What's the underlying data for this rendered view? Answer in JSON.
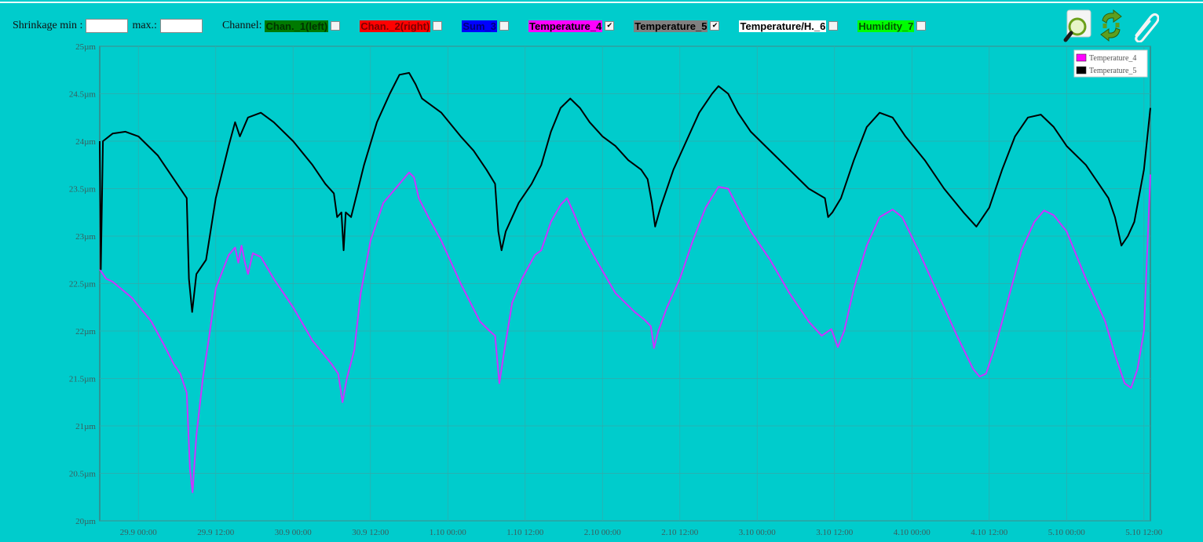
{
  "toolbar": {
    "shrinkage_min_label": "Shrinkage min :",
    "shrinkage_min_value": "",
    "max_label": "max.:",
    "max_value": "",
    "channel_label": "Channel:",
    "channels": [
      {
        "label": "Chan._1(left)",
        "bg": "#007a00",
        "fg": "#003300",
        "checked": false
      },
      {
        "label": "Chan._2(right)",
        "bg": "#ff0000",
        "fg": "#7a0000",
        "checked": false
      },
      {
        "label": "Sum_3",
        "bg": "#0000ff",
        "fg": "#00007a",
        "checked": false
      },
      {
        "label": "Temperature_4",
        "bg": "#ff00ff",
        "fg": "#000000",
        "checked": true
      },
      {
        "label": "Temperature_5",
        "bg": "#808080",
        "fg": "#000000",
        "checked": true
      },
      {
        "label": "Temperature/H._6",
        "bg": "#ffffff",
        "fg": "#000000",
        "checked": false
      },
      {
        "label": "Humidity_7",
        "bg": "#00ff00",
        "fg": "#005500",
        "checked": false
      }
    ]
  },
  "icons": [
    "zoom-icon",
    "refresh-icon",
    "attach-icon"
  ],
  "chart_data": {
    "type": "line",
    "ylim": [
      20,
      25
    ],
    "y_unit": "µm",
    "y_ticks": [
      "20µm",
      "20.5µm",
      "21µm",
      "21.5µm",
      "22µm",
      "22.5µm",
      "23µm",
      "23.5µm",
      "24µm",
      "24.5µm",
      "25µm"
    ],
    "x_ticks": [
      "29.9 00:00",
      "29.9 12:00",
      "30.9 00:00",
      "30.9 12:00",
      "1.10 00:00",
      "1.10 12:00",
      "2.10 00:00",
      "2.10 12:00",
      "3.10 00:00",
      "3.10 12:00",
      "4.10 00:00",
      "4.10 12:00",
      "5.10 00:00",
      "5.10 12:00"
    ],
    "xlim": [
      "28.9 18:00",
      "5.10 13:00"
    ],
    "grid": true,
    "legend": "top-right",
    "background": "#00cccc",
    "series": [
      {
        "name": "Temperature_4",
        "color": "#cc33ff",
        "legend_color": "#ff00ff",
        "points": [
          [
            "28.9 18:00",
            22.65
          ],
          [
            "28.9 19:00",
            22.55
          ],
          [
            "28.9 20:00",
            22.52
          ],
          [
            "28.9 23:00",
            22.35
          ],
          [
            "29.9 02:00",
            22.1
          ],
          [
            "29.9 04:00",
            21.85
          ],
          [
            "29.9 05:30",
            21.65
          ],
          [
            "29.9 06:30",
            21.55
          ],
          [
            "29.9 07:30",
            21.35
          ],
          [
            "29.9 08:00",
            20.55
          ],
          [
            "29.9 08:24",
            20.3
          ],
          [
            "29.9 09:00",
            20.9
          ],
          [
            "29.9 10:00",
            21.5
          ],
          [
            "29.9 11:00",
            21.95
          ],
          [
            "29.9 12:00",
            22.45
          ],
          [
            "29.9 14:00",
            22.8
          ],
          [
            "29.9 15:00",
            22.88
          ],
          [
            "29.9 15:30",
            22.72
          ],
          [
            "29.9 16:00",
            22.9
          ],
          [
            "29.9 16:30",
            22.73
          ],
          [
            "29.9 17:00",
            22.6
          ],
          [
            "29.9 17:45",
            22.82
          ],
          [
            "29.9 19:00",
            22.78
          ],
          [
            "29.9 21:00",
            22.55
          ],
          [
            "30.9 00:00",
            22.25
          ],
          [
            "30.9 03:00",
            21.9
          ],
          [
            "30.9 06:00",
            21.65
          ],
          [
            "30.9 07:00",
            21.55
          ],
          [
            "30.9 07:40",
            21.25
          ],
          [
            "30.9 08:20",
            21.5
          ],
          [
            "30.9 09:30",
            21.8
          ],
          [
            "30.9 10:30",
            22.4
          ],
          [
            "30.9 12:00",
            22.95
          ],
          [
            "30.9 14:00",
            23.35
          ],
          [
            "30.9 16:30",
            23.55
          ],
          [
            "30.9 18:00",
            23.67
          ],
          [
            "30.9 18:45",
            23.62
          ],
          [
            "30.9 19:30",
            23.4
          ],
          [
            "30.9 21:00",
            23.2
          ],
          [
            "30.9 23:00",
            22.95
          ],
          [
            "1.10 02:00",
            22.5
          ],
          [
            "1.10 05:00",
            22.1
          ],
          [
            "1.10 06:30",
            22.0
          ],
          [
            "1.10 07:20",
            21.95
          ],
          [
            "1.10 08:00",
            21.45
          ],
          [
            "1.10 08:40",
            21.75
          ],
          [
            "1.10 10:00",
            22.3
          ],
          [
            "1.10 11:30",
            22.55
          ],
          [
            "1.10 13:30",
            22.8
          ],
          [
            "1.10 14:30",
            22.85
          ],
          [
            "1.10 16:00",
            23.15
          ],
          [
            "1.10 17:30",
            23.33
          ],
          [
            "1.10 18:30",
            23.4
          ],
          [
            "1.10 19:30",
            23.25
          ],
          [
            "1.10 21:00",
            23.0
          ],
          [
            "1.10 23:00",
            22.75
          ],
          [
            "2.10 02:00",
            22.4
          ],
          [
            "2.10 05:00",
            22.2
          ],
          [
            "2.10 06:30",
            22.12
          ],
          [
            "2.10 07:30",
            22.05
          ],
          [
            "2.10 08:00",
            21.82
          ],
          [
            "2.10 08:40",
            22.0
          ],
          [
            "2.10 10:00",
            22.25
          ],
          [
            "2.10 12:00",
            22.55
          ],
          [
            "2.10 14:00",
            22.95
          ],
          [
            "2.10 16:00",
            23.3
          ],
          [
            "2.10 18:00",
            23.52
          ],
          [
            "2.10 19:30",
            23.5
          ],
          [
            "2.10 21:00",
            23.3
          ],
          [
            "2.10 23:00",
            23.05
          ],
          [
            "3.10 02:00",
            22.75
          ],
          [
            "3.10 05:00",
            22.4
          ],
          [
            "3.10 08:00",
            22.1
          ],
          [
            "3.10 10:00",
            21.95
          ],
          [
            "3.10 11:30",
            22.02
          ],
          [
            "3.10 12:30",
            21.83
          ],
          [
            "3.10 13:30",
            22.0
          ],
          [
            "3.10 15:00",
            22.45
          ],
          [
            "3.10 17:00",
            22.9
          ],
          [
            "3.10 19:00",
            23.2
          ],
          [
            "3.10 21:00",
            23.28
          ],
          [
            "3.10 22:30",
            23.2
          ],
          [
            "4.10 01:00",
            22.85
          ],
          [
            "4.10 04:00",
            22.4
          ],
          [
            "4.10 07:00",
            21.95
          ],
          [
            "4.10 09:30",
            21.6
          ],
          [
            "4.10 10:30",
            21.52
          ],
          [
            "4.10 11:30",
            21.55
          ],
          [
            "4.10 13:00",
            21.85
          ],
          [
            "4.10 15:00",
            22.35
          ],
          [
            "4.10 17:00",
            22.85
          ],
          [
            "4.10 19:00",
            23.15
          ],
          [
            "4.10 20:30",
            23.27
          ],
          [
            "4.10 22:00",
            23.22
          ],
          [
            "5.10 00:00",
            23.05
          ],
          [
            "5.10 03:00",
            22.55
          ],
          [
            "5.10 06:00",
            22.1
          ],
          [
            "5.10 07:30",
            21.75
          ],
          [
            "5.10 09:00",
            21.45
          ],
          [
            "5.10 10:00",
            21.4
          ],
          [
            "5.10 11:00",
            21.6
          ],
          [
            "5.10 12:00",
            22.0
          ],
          [
            "5.10 13:00",
            23.65
          ]
        ]
      },
      {
        "name": "Temperature_5",
        "color": "#000000",
        "legend_color": "#000000",
        "points": [
          [
            "28.9 18:00",
            24.0
          ],
          [
            "28.9 18:10",
            22.65
          ],
          [
            "28.9 18:30",
            24.0
          ],
          [
            "28.9 20:00",
            24.08
          ],
          [
            "28.9 22:00",
            24.1
          ],
          [
            "29.9 00:00",
            24.05
          ],
          [
            "29.9 03:00",
            23.85
          ],
          [
            "29.9 06:00",
            23.55
          ],
          [
            "29.9 07:30",
            23.4
          ],
          [
            "29.9 07:50",
            22.55
          ],
          [
            "29.9 08:20",
            22.2
          ],
          [
            "29.9 09:00",
            22.6
          ],
          [
            "29.9 10:30",
            22.75
          ],
          [
            "29.9 12:00",
            23.4
          ],
          [
            "29.9 14:00",
            23.95
          ],
          [
            "29.9 15:00",
            24.2
          ],
          [
            "29.9 15:45",
            24.05
          ],
          [
            "29.9 17:00",
            24.25
          ],
          [
            "29.9 19:00",
            24.3
          ],
          [
            "29.9 21:00",
            24.2
          ],
          [
            "30.9 00:00",
            24.0
          ],
          [
            "30.9 03:00",
            23.75
          ],
          [
            "30.9 05:00",
            23.55
          ],
          [
            "30.9 06:20",
            23.45
          ],
          [
            "30.9 06:50",
            23.2
          ],
          [
            "30.9 07:30",
            23.25
          ],
          [
            "30.9 07:50",
            22.85
          ],
          [
            "30.9 08:10",
            23.25
          ],
          [
            "30.9 09:00",
            23.2
          ],
          [
            "30.9 11:00",
            23.75
          ],
          [
            "30.9 13:00",
            24.2
          ],
          [
            "30.9 15:00",
            24.5
          ],
          [
            "30.9 16:30",
            24.7
          ],
          [
            "30.9 18:00",
            24.72
          ],
          [
            "30.9 19:00",
            24.6
          ],
          [
            "30.9 20:00",
            24.45
          ],
          [
            "30.9 23:00",
            24.3
          ],
          [
            "1.10 02:00",
            24.05
          ],
          [
            "1.10 04:00",
            23.9
          ],
          [
            "1.10 06:00",
            23.7
          ],
          [
            "1.10 07:20",
            23.55
          ],
          [
            "1.10 07:50",
            23.05
          ],
          [
            "1.10 08:20",
            22.85
          ],
          [
            "1.10 09:00",
            23.05
          ],
          [
            "1.10 11:00",
            23.35
          ],
          [
            "1.10 13:00",
            23.55
          ],
          [
            "1.10 14:30",
            23.75
          ],
          [
            "1.10 16:00",
            24.1
          ],
          [
            "1.10 17:30",
            24.35
          ],
          [
            "1.10 19:00",
            24.45
          ],
          [
            "1.10 20:30",
            24.35
          ],
          [
            "1.10 22:00",
            24.2
          ],
          [
            "2.10 00:00",
            24.05
          ],
          [
            "2.10 02:00",
            23.95
          ],
          [
            "2.10 04:00",
            23.8
          ],
          [
            "2.10 06:00",
            23.7
          ],
          [
            "2.10 07:00",
            23.6
          ],
          [
            "2.10 07:40",
            23.35
          ],
          [
            "2.10 08:10",
            23.1
          ],
          [
            "2.10 09:00",
            23.3
          ],
          [
            "2.10 11:00",
            23.7
          ],
          [
            "2.10 13:00",
            24.0
          ],
          [
            "2.10 15:00",
            24.3
          ],
          [
            "2.10 17:00",
            24.5
          ],
          [
            "2.10 18:00",
            24.58
          ],
          [
            "2.10 19:30",
            24.5
          ],
          [
            "2.10 21:00",
            24.3
          ],
          [
            "2.10 23:00",
            24.1
          ],
          [
            "3.10 02:00",
            23.9
          ],
          [
            "3.10 05:00",
            23.7
          ],
          [
            "3.10 08:00",
            23.5
          ],
          [
            "3.10 10:30",
            23.4
          ],
          [
            "3.10 11:00",
            23.2
          ],
          [
            "3.10 11:40",
            23.25
          ],
          [
            "3.10 13:00",
            23.4
          ],
          [
            "3.10 15:00",
            23.8
          ],
          [
            "3.10 17:00",
            24.15
          ],
          [
            "3.10 19:00",
            24.3
          ],
          [
            "3.10 21:00",
            24.25
          ],
          [
            "3.10 23:00",
            24.05
          ],
          [
            "4.10 02:00",
            23.8
          ],
          [
            "4.10 05:00",
            23.5
          ],
          [
            "4.10 08:00",
            23.25
          ],
          [
            "4.10 10:00",
            23.1
          ],
          [
            "4.10 12:00",
            23.3
          ],
          [
            "4.10 14:00",
            23.7
          ],
          [
            "4.10 16:00",
            24.05
          ],
          [
            "4.10 18:00",
            24.25
          ],
          [
            "4.10 20:00",
            24.28
          ],
          [
            "4.10 22:00",
            24.15
          ],
          [
            "5.10 00:00",
            23.95
          ],
          [
            "5.10 03:00",
            23.75
          ],
          [
            "5.10 05:00",
            23.55
          ],
          [
            "5.10 06:30",
            23.4
          ],
          [
            "5.10 07:30",
            23.2
          ],
          [
            "5.10 08:30",
            22.9
          ],
          [
            "5.10 09:30",
            23.0
          ],
          [
            "5.10 10:30",
            23.15
          ],
          [
            "5.10 12:00",
            23.7
          ],
          [
            "5.10 13:00",
            24.35
          ]
        ]
      }
    ]
  }
}
